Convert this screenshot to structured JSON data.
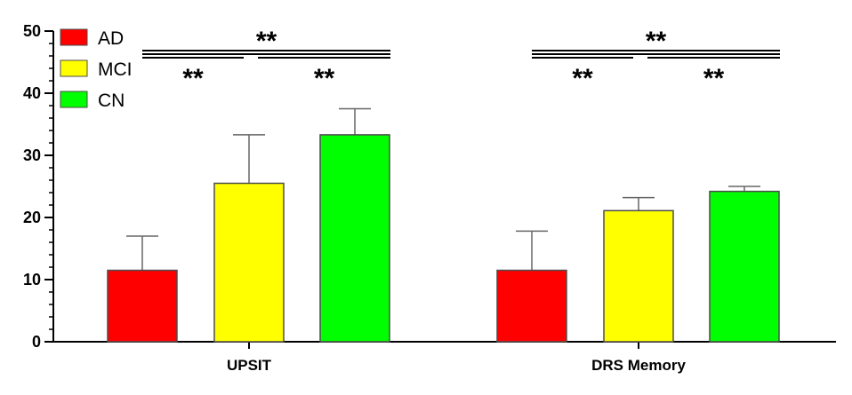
{
  "chart_data": {
    "type": "bar",
    "title": "",
    "xlabel": "",
    "ylabel": "",
    "categories": [
      "UPSIT",
      "DRS Memory"
    ],
    "series": [
      {
        "name": "AD",
        "color": "#ff0000",
        "values": [
          11.5,
          11.5
        ],
        "errors": [
          5.5,
          6.3
        ]
      },
      {
        "name": "MCI",
        "color": "#ffff00",
        "values": [
          25.5,
          21.1
        ],
        "errors": [
          7.8,
          2.1
        ]
      },
      {
        "name": "CN",
        "color": "#00ff00",
        "values": [
          33.3,
          24.2
        ],
        "errors": [
          4.2,
          0.8
        ]
      }
    ],
    "ylim": [
      0,
      50
    ],
    "yticks": [
      "0",
      "10",
      "20",
      "30",
      "40",
      "50"
    ],
    "legend": "top-left",
    "grid": false,
    "significance": [
      {
        "category": "UPSIT",
        "from": "AD",
        "to": "CN",
        "label": "**"
      },
      {
        "category": "UPSIT",
        "from": "AD",
        "to": "MCI",
        "label": "**"
      },
      {
        "category": "UPSIT",
        "from": "MCI",
        "to": "CN",
        "label": "**"
      },
      {
        "category": "DRS Memory",
        "from": "AD",
        "to": "CN",
        "label": "**"
      },
      {
        "category": "DRS Memory",
        "from": "AD",
        "to": "MCI",
        "label": "**"
      },
      {
        "category": "DRS Memory",
        "from": "MCI",
        "to": "CN",
        "label": "**"
      }
    ]
  }
}
